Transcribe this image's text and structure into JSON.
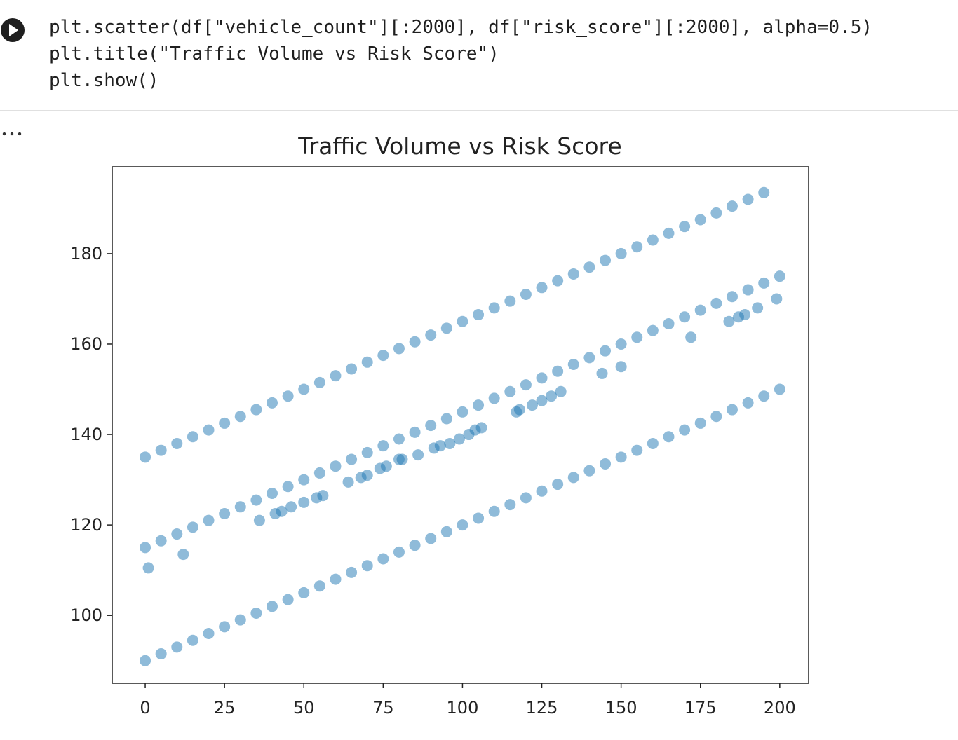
{
  "code": [
    "plt.scatter(df[\"vehicle_count\"][:2000], df[\"risk_score\"][:2000], alpha=0.5)",
    "plt.title(\"Traffic Volume vs Risk Score\")",
    "plt.show()"
  ],
  "chart_data": {
    "type": "scatter",
    "title": "Traffic Volume vs Risk Score",
    "color": "#1f77b4",
    "alpha": 0.5,
    "xlim": [
      -10.4,
      209.1
    ],
    "ylim": [
      85,
      199.2
    ],
    "xticks": [
      0,
      25,
      50,
      75,
      100,
      125,
      150,
      175,
      200
    ],
    "yticks": [
      100,
      120,
      140,
      160,
      180
    ],
    "x": [
      0,
      5,
      10,
      15,
      20,
      25,
      30,
      35,
      40,
      45,
      50,
      55,
      60,
      65,
      70,
      75,
      80,
      85,
      90,
      95,
      100,
      105,
      110,
      115,
      120,
      125,
      130,
      135,
      140,
      145,
      150,
      155,
      160,
      165,
      170,
      175,
      180,
      185,
      190,
      195,
      0,
      5,
      10,
      15,
      20,
      25,
      30,
      35,
      40,
      45,
      50,
      55,
      60,
      65,
      70,
      75,
      80,
      85,
      90,
      95,
      100,
      105,
      110,
      115,
      120,
      125,
      130,
      135,
      140,
      145,
      150,
      155,
      160,
      165,
      170,
      175,
      180,
      185,
      190,
      195,
      200,
      0,
      5,
      10,
      15,
      20,
      25,
      30,
      35,
      40,
      45,
      50,
      55,
      60,
      65,
      70,
      75,
      80,
      85,
      90,
      95,
      100,
      105,
      110,
      115,
      120,
      125,
      130,
      135,
      140,
      145,
      150,
      155,
      160,
      165,
      170,
      175,
      180,
      185,
      190,
      195,
      200,
      1,
      12,
      36,
      41,
      43,
      46,
      50,
      54,
      56,
      64,
      68,
      70,
      74,
      76,
      80,
      81,
      86,
      91,
      93,
      96,
      99,
      102,
      104,
      106,
      117,
      118,
      122,
      125,
      128,
      131,
      144,
      150,
      172,
      184,
      187,
      189,
      193,
      199
    ],
    "y": [
      135,
      136.5,
      138,
      139.5,
      141,
      142.5,
      144,
      145.5,
      147,
      148.5,
      150,
      151.5,
      153,
      154.5,
      156,
      157.5,
      159,
      160.5,
      162,
      163.5,
      165,
      166.5,
      168,
      169.5,
      171,
      172.5,
      174,
      175.5,
      177,
      178.5,
      180,
      181.5,
      183,
      184.5,
      186,
      187.5,
      189,
      190.5,
      192,
      193.5,
      115,
      116.5,
      118,
      119.5,
      121,
      122.5,
      124,
      125.5,
      127,
      128.5,
      130,
      131.5,
      133,
      134.5,
      136,
      137.5,
      139,
      140.5,
      142,
      143.5,
      145,
      146.5,
      148,
      149.5,
      151,
      152.5,
      154,
      155.5,
      157,
      158.5,
      160,
      161.5,
      163,
      164.5,
      166,
      167.5,
      169,
      170.5,
      172,
      173.5,
      175,
      90,
      91.5,
      93,
      94.5,
      96,
      97.5,
      99,
      100.5,
      102,
      103.5,
      105,
      106.5,
      108,
      109.5,
      111,
      112.5,
      114,
      115.5,
      117,
      118.5,
      120,
      121.5,
      123,
      124.5,
      126,
      127.5,
      129,
      130.5,
      132,
      133.5,
      135,
      136.5,
      138,
      139.5,
      141,
      142.5,
      144,
      145.5,
      147,
      148.5,
      150,
      110.5,
      113.5,
      121,
      122.5,
      123,
      124,
      125,
      126,
      126.5,
      129.5,
      130.5,
      131,
      132.5,
      133,
      134.5,
      134.5,
      135.5,
      137,
      137.5,
      138,
      139,
      140,
      141,
      141.5,
      145,
      145.5,
      146.5,
      147.5,
      148.5,
      149.5,
      153.5,
      155,
      161.5,
      165,
      166,
      166.5,
      168,
      170
    ]
  }
}
